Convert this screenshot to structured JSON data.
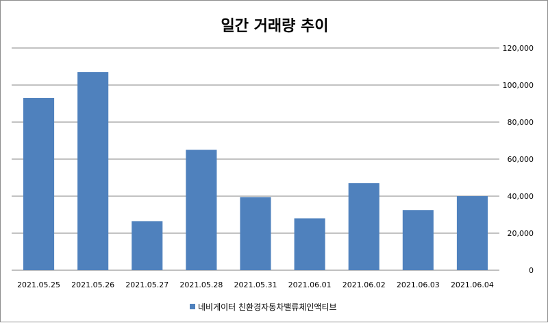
{
  "chart_data": {
    "type": "bar",
    "title": "일간 거래량 추이",
    "categories": [
      "2021.05.25",
      "2021.05.26",
      "2021.05.27",
      "2021.05.28",
      "2021.05.31",
      "2021.06.01",
      "2021.06.02",
      "2021.06.03",
      "2021.06.04"
    ],
    "series": [
      {
        "name": "네비게이터 친환경자동차밸류체인액티브",
        "color": "#4f81bd",
        "values": [
          93000,
          107000,
          26500,
          65000,
          39500,
          28000,
          47000,
          32500,
          40000
        ]
      }
    ],
    "ylim": [
      0,
      120000
    ],
    "yticks": [
      "0",
      "20,000",
      "40,000",
      "60,000",
      "80,000",
      "100,000",
      "120,000"
    ],
    "y_axis_side": "right",
    "grid": true,
    "legend": "bottom"
  }
}
